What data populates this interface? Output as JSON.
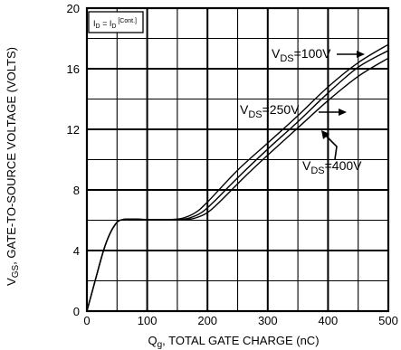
{
  "chart_data": {
    "type": "line",
    "xlabel": {
      "prefix": "Q",
      "sub": "g",
      "rest": ", TOTAL GATE CHARGE (nC)"
    },
    "ylabel": {
      "prefix": "V",
      "sub": "GS",
      "rest": ", GATE-TO-SOURCE VOLTAGE (VOLTS)"
    },
    "xlim": [
      0,
      500
    ],
    "ylim": [
      0,
      20
    ],
    "x_ticks": [
      "0",
      "100",
      "200",
      "300",
      "400",
      "500"
    ],
    "y_ticks": [
      "0",
      "4",
      "8",
      "12",
      "16",
      "20"
    ],
    "grid": true,
    "condition_box": {
      "a": "I",
      "a_sub": "D",
      "eq": " = I",
      "b_sub": "D",
      "tail": " [Cont.]"
    },
    "series": [
      {
        "name": "VDS=100V",
        "label": {
          "main": "V",
          "sub": "DS",
          "rest": "=100V"
        },
        "points": [
          [
            0,
            0
          ],
          [
            15,
            2.2
          ],
          [
            30,
            4.3
          ],
          [
            45,
            5.6
          ],
          [
            60,
            6.05
          ],
          [
            100,
            6.05
          ],
          [
            140,
            6.05
          ],
          [
            160,
            6.15
          ],
          [
            180,
            6.5
          ],
          [
            200,
            7.2
          ],
          [
            250,
            9.3
          ],
          [
            300,
            11.1
          ],
          [
            350,
            12.9
          ],
          [
            400,
            14.8
          ],
          [
            450,
            16.4
          ],
          [
            500,
            17.6
          ]
        ]
      },
      {
        "name": "VDS=250V",
        "label": {
          "main": "V",
          "sub": "DS",
          "rest": "=250V"
        },
        "points": [
          [
            0,
            0
          ],
          [
            15,
            2.2
          ],
          [
            30,
            4.3
          ],
          [
            45,
            5.6
          ],
          [
            60,
            6.05
          ],
          [
            100,
            6.05
          ],
          [
            150,
            6.05
          ],
          [
            170,
            6.15
          ],
          [
            190,
            6.5
          ],
          [
            210,
            7.2
          ],
          [
            250,
            8.8
          ],
          [
            300,
            10.7
          ],
          [
            350,
            12.5
          ],
          [
            400,
            14.4
          ],
          [
            450,
            16.1
          ],
          [
            500,
            17.2
          ]
        ]
      },
      {
        "name": "VDS=400V",
        "label": {
          "main": "V",
          "sub": "DS",
          "rest": "=400V"
        },
        "points": [
          [
            0,
            0
          ],
          [
            15,
            2.2
          ],
          [
            30,
            4.3
          ],
          [
            45,
            5.6
          ],
          [
            60,
            6.05
          ],
          [
            100,
            6.05
          ],
          [
            160,
            6.05
          ],
          [
            180,
            6.15
          ],
          [
            200,
            6.5
          ],
          [
            220,
            7.2
          ],
          [
            260,
            8.8
          ],
          [
            300,
            10.3
          ],
          [
            350,
            12.1
          ],
          [
            400,
            13.9
          ],
          [
            450,
            15.5
          ],
          [
            500,
            16.7
          ]
        ]
      }
    ]
  }
}
